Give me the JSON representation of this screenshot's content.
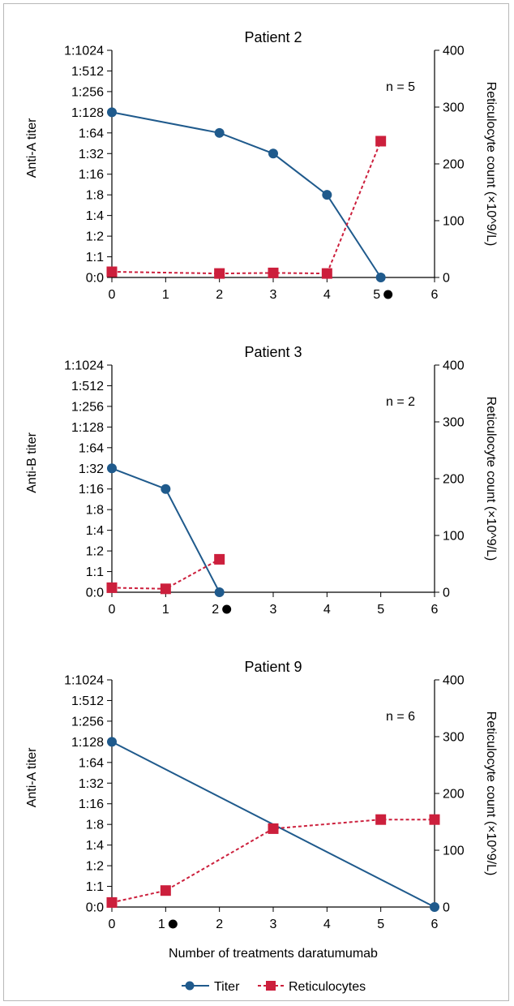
{
  "chart_data": {
    "type": "line",
    "colors": {
      "titer": "#1f5a8c",
      "reticulocytes": "#cc1f3c",
      "axis": "#000000",
      "frame": "#b8b8b8"
    },
    "titer_levels": [
      "0:0",
      "1:1",
      "1:2",
      "1:4",
      "1:8",
      "1:16",
      "1:32",
      "1:64",
      "1:128",
      "1:256",
      "1:512",
      "1:1024"
    ],
    "xlabel": "Number of treatments daratumumab",
    "xlim": [
      0,
      6
    ],
    "x_ticks": [
      "0",
      "1",
      "2",
      "3",
      "4",
      "5",
      "6"
    ],
    "y2_ticks": [
      "0",
      "100",
      "200",
      "300",
      "400"
    ],
    "y2lim": [
      0,
      400
    ],
    "legend": {
      "placement": "bottom-center",
      "items": [
        "Titer",
        "Reticulocytes"
      ]
    },
    "panels": [
      {
        "title": "Patient 2",
        "ylabel": "Anti-A titer",
        "y2label": "Reticulocyte count (×10^9/L)",
        "n_label": "n = 5",
        "marked_x": 5,
        "series": [
          {
            "name": "Titer",
            "style": "solid",
            "x": [
              0,
              2,
              3,
              4,
              5
            ],
            "y": [
              "1:128",
              "1:64",
              "1:32",
              "1:8",
              "0:0"
            ]
          },
          {
            "name": "Reticulocytes",
            "style": "dashed",
            "x": [
              0,
              2,
              3,
              4,
              5
            ],
            "y": [
              10,
              7,
              8,
              7,
              240
            ]
          }
        ]
      },
      {
        "title": "Patient 3",
        "ylabel": "Anti-B titer",
        "y2label": "Reticulocyte count (×10^9/L)",
        "n_label": "n = 2",
        "marked_x": 2,
        "series": [
          {
            "name": "Titer",
            "style": "solid",
            "x": [
              0,
              1,
              2
            ],
            "y": [
              "1:32",
              "1:16",
              "0:0"
            ]
          },
          {
            "name": "Reticulocytes",
            "style": "dashed",
            "x": [
              0,
              1,
              2
            ],
            "y": [
              8,
              6,
              58
            ]
          }
        ]
      },
      {
        "title": "Patient 9",
        "ylabel": "Anti-A titer",
        "y2label": "Reticulocyte count (×10^9/L)",
        "n_label": "n = 6",
        "marked_x": 1,
        "series": [
          {
            "name": "Titer",
            "style": "solid",
            "x": [
              0,
              6
            ],
            "y": [
              "1:128",
              "0:0"
            ]
          },
          {
            "name": "Reticulocytes",
            "style": "dashed",
            "x": [
              0,
              1,
              3,
              5,
              6
            ],
            "y": [
              8,
              29,
              138,
              154,
              154
            ]
          }
        ]
      }
    ]
  }
}
